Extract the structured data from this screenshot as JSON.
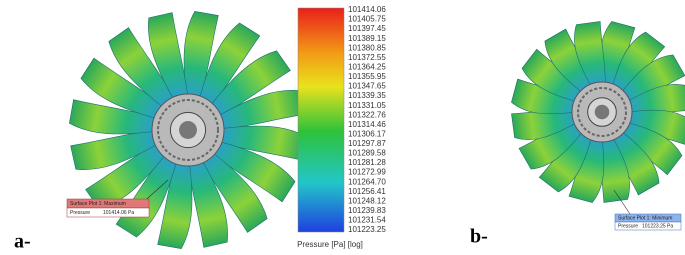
{
  "figure": {
    "panels": [
      {
        "label": "a-",
        "callout": {
          "title": "Surface Plot 1: Maximum",
          "field": "Pressure",
          "value": "101414.06 Pa"
        }
      },
      {
        "label": "b-",
        "callout": {
          "title": "Surface Plot 1: Minimum",
          "field": "Pressure",
          "value": "101223.25 Pa"
        }
      }
    ],
    "colorbar": {
      "title": "Pressure [Pa] [log]",
      "labels": [
        "101414.06",
        "101405.75",
        "101397.45",
        "101389.15",
        "101380.85",
        "101372.55",
        "101364.25",
        "101355.95",
        "101347.65",
        "101339.35",
        "101331.05",
        "101322.76",
        "101314.46",
        "101306.17",
        "101297.87",
        "101289.58",
        "101281.28",
        "101272.99",
        "101264.70",
        "101256.41",
        "101248.12",
        "101239.83",
        "101231.54",
        "101223.25"
      ]
    }
  }
}
